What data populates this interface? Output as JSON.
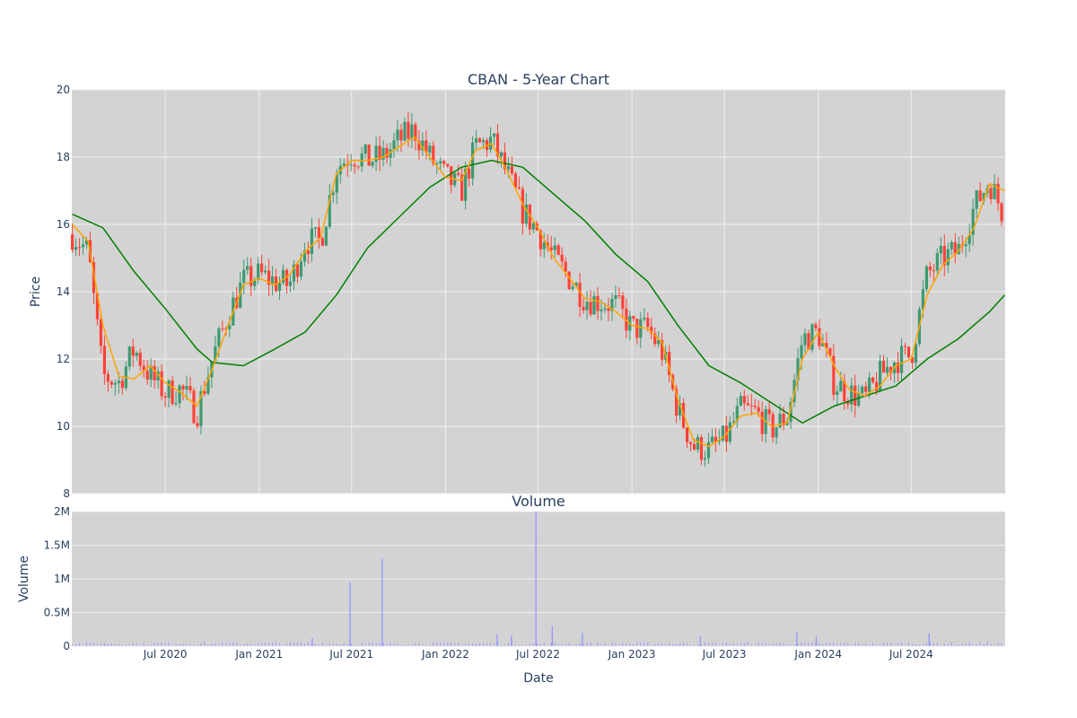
{
  "chart_data": [
    {
      "type": "candlestick",
      "title": "CBAN - 5-Year Chart",
      "ylabel": "Price",
      "ylim": [
        8,
        20
      ],
      "yticks": [
        8,
        10,
        12,
        14,
        16,
        18,
        20
      ],
      "grid": true,
      "xlim": [
        "2019-12-31",
        "2025-01-01"
      ],
      "x_tick_dates": [
        "2020-07-01",
        "2021-01-01",
        "2021-07-01",
        "2022-01-01",
        "2022-07-01",
        "2023-01-01",
        "2023-07-01",
        "2024-01-01",
        "2024-07-01"
      ],
      "colors": {
        "increasing": "#3d9970",
        "decreasing": "#ff4136",
        "ma_short": "#ffa500",
        "ma_long": "#008000",
        "plot_bg": "#d3d3d3",
        "grid": "#f0f0f0"
      },
      "series": [
        {
          "type": "candlestick",
          "monthly_close": [
            [
              "2020-01-01",
              15.7
            ],
            [
              "2020-02-01",
              15.2
            ],
            [
              "2020-03-01",
              11.5
            ],
            [
              "2020-04-01",
              11.3
            ],
            [
              "2020-05-01",
              12.3
            ],
            [
              "2020-06-01",
              11.5
            ],
            [
              "2020-07-01",
              11.0
            ],
            [
              "2020-08-01",
              11.1
            ],
            [
              "2020-09-01",
              10.4
            ],
            [
              "2020-10-01",
              12.0
            ],
            [
              "2020-11-01",
              13.3
            ],
            [
              "2020-12-01",
              14.3
            ],
            [
              "2021-01-01",
              14.5
            ],
            [
              "2021-02-01",
              14.3
            ],
            [
              "2021-03-01",
              14.2
            ],
            [
              "2021-04-01",
              15.5
            ],
            [
              "2021-05-01",
              15.5
            ],
            [
              "2021-06-01",
              17.7
            ],
            [
              "2021-07-01",
              18.1
            ],
            [
              "2021-08-01",
              17.9
            ],
            [
              "2021-09-01",
              18.0
            ],
            [
              "2021-10-01",
              18.5
            ],
            [
              "2021-11-01",
              18.8
            ],
            [
              "2021-12-01",
              18.0
            ],
            [
              "2022-01-01",
              17.4
            ],
            [
              "2022-02-01",
              17.0
            ],
            [
              "2022-03-01",
              18.3
            ],
            [
              "2022-04-01",
              18.5
            ],
            [
              "2022-05-01",
              17.5
            ],
            [
              "2022-06-01",
              16.4
            ],
            [
              "2022-07-01",
              15.8
            ],
            [
              "2022-08-01",
              15.0
            ],
            [
              "2022-09-01",
              14.4
            ],
            [
              "2022-10-01",
              13.8
            ],
            [
              "2022-11-01",
              13.7
            ],
            [
              "2022-12-01",
              13.6
            ],
            [
              "2023-01-01",
              12.9
            ],
            [
              "2023-02-01",
              12.9
            ],
            [
              "2023-03-01",
              12.2
            ],
            [
              "2023-04-01",
              10.5
            ],
            [
              "2023-05-01",
              9.4
            ],
            [
              "2023-06-01",
              9.3
            ],
            [
              "2023-07-01",
              9.6
            ],
            [
              "2023-08-01",
              10.5
            ],
            [
              "2023-09-01",
              10.4
            ],
            [
              "2023-10-01",
              9.9
            ],
            [
              "2023-11-01",
              10.3
            ],
            [
              "2023-12-01",
              12.6
            ],
            [
              "2024-01-01",
              12.8
            ],
            [
              "2024-02-01",
              11.3
            ],
            [
              "2024-03-01",
              11.0
            ],
            [
              "2024-04-01",
              10.8
            ],
            [
              "2024-05-01",
              11.5
            ],
            [
              "2024-06-01",
              12.0
            ],
            [
              "2024-07-01",
              12.1
            ],
            [
              "2024-08-01",
              14.5
            ],
            [
              "2024-09-01",
              15.0
            ],
            [
              "2024-10-01",
              15.2
            ],
            [
              "2024-11-01",
              16.5
            ],
            [
              "2024-12-01",
              17.3
            ],
            [
              "2024-12-31",
              16.2
            ]
          ]
        },
        {
          "type": "line",
          "moving_average": "short",
          "points": [
            [
              "2020-01-01",
              16.0
            ],
            [
              "2020-02-01",
              15.5
            ],
            [
              "2020-03-01",
              13.0
            ],
            [
              "2020-04-01",
              11.5
            ],
            [
              "2020-05-01",
              11.4
            ],
            [
              "2020-06-01",
              11.8
            ],
            [
              "2020-07-01",
              11.3
            ],
            [
              "2020-08-01",
              11.0
            ],
            [
              "2020-09-01",
              10.6
            ],
            [
              "2020-10-01",
              11.7
            ],
            [
              "2020-11-01",
              13.0
            ],
            [
              "2020-12-01",
              14.2
            ],
            [
              "2021-01-01",
              14.4
            ],
            [
              "2021-02-01",
              14.2
            ],
            [
              "2021-03-01",
              14.5
            ],
            [
              "2021-04-01",
              15.2
            ],
            [
              "2021-05-01",
              15.6
            ],
            [
              "2021-06-01",
              17.5
            ],
            [
              "2021-07-01",
              17.9
            ],
            [
              "2021-08-01",
              17.9
            ],
            [
              "2021-09-01",
              18.0
            ],
            [
              "2021-10-01",
              18.3
            ],
            [
              "2021-11-01",
              18.6
            ],
            [
              "2021-12-01",
              18.0
            ],
            [
              "2022-01-01",
              17.4
            ],
            [
              "2022-02-01",
              17.3
            ],
            [
              "2022-03-01",
              18.2
            ],
            [
              "2022-04-01",
              18.4
            ],
            [
              "2022-05-01",
              17.6
            ],
            [
              "2022-06-01",
              16.6
            ],
            [
              "2022-07-01",
              15.9
            ],
            [
              "2022-08-01",
              15.0
            ],
            [
              "2022-09-01",
              14.4
            ],
            [
              "2022-10-01",
              13.8
            ],
            [
              "2022-11-01",
              13.7
            ],
            [
              "2022-12-01",
              13.4
            ],
            [
              "2023-01-01",
              13.0
            ],
            [
              "2023-02-01",
              12.9
            ],
            [
              "2023-03-01",
              12.5
            ],
            [
              "2023-04-01",
              10.8
            ],
            [
              "2023-05-01",
              9.6
            ],
            [
              "2023-06-01",
              9.4
            ],
            [
              "2023-07-01",
              9.7
            ],
            [
              "2023-08-01",
              10.3
            ],
            [
              "2023-09-01",
              10.4
            ],
            [
              "2023-10-01",
              10.0
            ],
            [
              "2023-11-01",
              10.1
            ],
            [
              "2023-12-01",
              12.0
            ],
            [
              "2024-01-01",
              12.8
            ],
            [
              "2024-02-01",
              11.8
            ],
            [
              "2024-03-01",
              11.1
            ],
            [
              "2024-04-01",
              10.9
            ],
            [
              "2024-05-01",
              11.2
            ],
            [
              "2024-06-01",
              11.8
            ],
            [
              "2024-07-01",
              12.0
            ],
            [
              "2024-08-01",
              13.9
            ],
            [
              "2024-09-01",
              14.8
            ],
            [
              "2024-10-01",
              15.2
            ],
            [
              "2024-11-01",
              15.9
            ],
            [
              "2024-12-01",
              17.2
            ],
            [
              "2024-12-31",
              17.0
            ]
          ]
        },
        {
          "type": "line",
          "moving_average": "long",
          "points": [
            [
              "2020-01-01",
              16.3
            ],
            [
              "2020-03-01",
              15.9
            ],
            [
              "2020-05-01",
              14.6
            ],
            [
              "2020-07-01",
              13.5
            ],
            [
              "2020-09-01",
              12.3
            ],
            [
              "2020-10-01",
              11.9
            ],
            [
              "2020-12-01",
              11.8
            ],
            [
              "2021-02-01",
              12.3
            ],
            [
              "2021-04-01",
              12.8
            ],
            [
              "2021-06-01",
              13.9
            ],
            [
              "2021-08-01",
              15.3
            ],
            [
              "2021-10-01",
              16.2
            ],
            [
              "2021-12-01",
              17.1
            ],
            [
              "2022-02-01",
              17.7
            ],
            [
              "2022-04-01",
              17.9
            ],
            [
              "2022-06-01",
              17.7
            ],
            [
              "2022-08-01",
              16.9
            ],
            [
              "2022-10-01",
              16.1
            ],
            [
              "2022-12-01",
              15.1
            ],
            [
              "2023-02-01",
              14.3
            ],
            [
              "2023-04-01",
              13.0
            ],
            [
              "2023-06-01",
              11.8
            ],
            [
              "2023-08-01",
              11.3
            ],
            [
              "2023-10-01",
              10.7
            ],
            [
              "2023-12-01",
              10.1
            ],
            [
              "2024-02-01",
              10.6
            ],
            [
              "2024-04-01",
              10.9
            ],
            [
              "2024-06-01",
              11.2
            ],
            [
              "2024-08-01",
              12.0
            ],
            [
              "2024-10-01",
              12.6
            ],
            [
              "2024-12-01",
              13.4
            ],
            [
              "2024-12-31",
              13.9
            ]
          ]
        }
      ]
    },
    {
      "type": "bar",
      "title": "Volume",
      "xlabel": "Date",
      "ylabel": "Volume",
      "ylim": [
        0,
        2000000
      ],
      "yticks": [
        {
          "value": 0,
          "label": "0"
        },
        {
          "value": 500000,
          "label": "0.5M"
        },
        {
          "value": 1000000,
          "label": "1M"
        },
        {
          "value": 1500000,
          "label": "1.5M"
        },
        {
          "value": 2000000,
          "label": "2M"
        }
      ],
      "xtick_labels": [
        "Jul 2020",
        "Jan 2021",
        "Jul 2021",
        "Jan 2022",
        "Jul 2022",
        "Jan 2023",
        "Jul 2023",
        "Jan 2024",
        "Jul 2024"
      ],
      "grid": true,
      "color": "#9999ff",
      "baseline_volume": 40000,
      "spikes": [
        [
          "2021-06-28",
          950000
        ],
        [
          "2021-08-30",
          1300000
        ],
        [
          "2022-06-27",
          2000000
        ],
        [
          "2022-07-29",
          300000
        ],
        [
          "2022-04-12",
          180000
        ],
        [
          "2022-09-26",
          200000
        ],
        [
          "2023-05-15",
          150000
        ],
        [
          "2023-11-20",
          210000
        ],
        [
          "2024-08-05",
          190000
        ],
        [
          "2022-05-10",
          160000
        ],
        [
          "2021-04-15",
          120000
        ],
        [
          "2023-12-28",
          140000
        ]
      ]
    }
  ]
}
